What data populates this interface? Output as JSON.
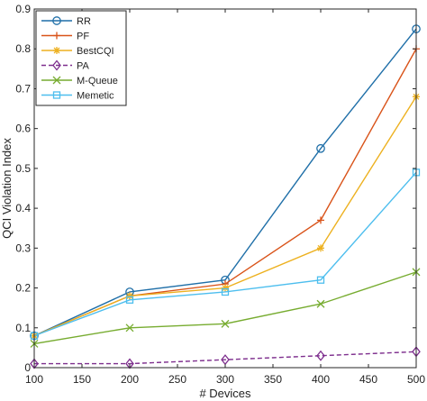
{
  "chart_data": {
    "type": "line",
    "xlabel": "# Devices",
    "ylabel": "QCI Violation Index",
    "xlim": [
      100,
      500
    ],
    "ylim": [
      0,
      0.9
    ],
    "xticks": [
      100,
      150,
      200,
      250,
      300,
      350,
      400,
      450,
      500
    ],
    "yticks": [
      0,
      0.1,
      0.2,
      0.3,
      0.4,
      0.5,
      0.6,
      0.7,
      0.8,
      0.9
    ],
    "xtick_labels": [
      "100",
      "150",
      "200",
      "250",
      "300",
      "350",
      "400",
      "450",
      "500"
    ],
    "ytick_labels": [
      "0",
      "0.1",
      "0.2",
      "0.3",
      "0.4",
      "0.5",
      "0.6",
      "0.7",
      "0.8",
      "0.9"
    ],
    "grid": false,
    "legend_position": "top-left",
    "x": [
      100,
      200,
      300,
      400,
      500
    ],
    "series": [
      {
        "name": "RR",
        "values": [
          0.08,
          0.19,
          0.22,
          0.55,
          0.85
        ],
        "color": "#1f6fa8",
        "marker": "circle",
        "dash": "solid"
      },
      {
        "name": "PF",
        "values": [
          0.08,
          0.18,
          0.21,
          0.37,
          0.8
        ],
        "color": "#d95319",
        "marker": "plus",
        "dash": "solid"
      },
      {
        "name": "BestCQI",
        "values": [
          0.08,
          0.18,
          0.2,
          0.3,
          0.68
        ],
        "color": "#edb120",
        "marker": "star",
        "dash": "solid"
      },
      {
        "name": "PA",
        "values": [
          0.01,
          0.01,
          0.02,
          0.03,
          0.04
        ],
        "color": "#7e2f8e",
        "marker": "diamond",
        "dash": "dashed"
      },
      {
        "name": "M-Queue",
        "values": [
          0.06,
          0.1,
          0.11,
          0.16,
          0.24
        ],
        "color": "#77ac30",
        "marker": "x",
        "dash": "solid"
      },
      {
        "name": "Memetic",
        "values": [
          0.08,
          0.17,
          0.19,
          0.22,
          0.49
        ],
        "color": "#4dbeee",
        "marker": "square",
        "dash": "solid"
      }
    ]
  }
}
